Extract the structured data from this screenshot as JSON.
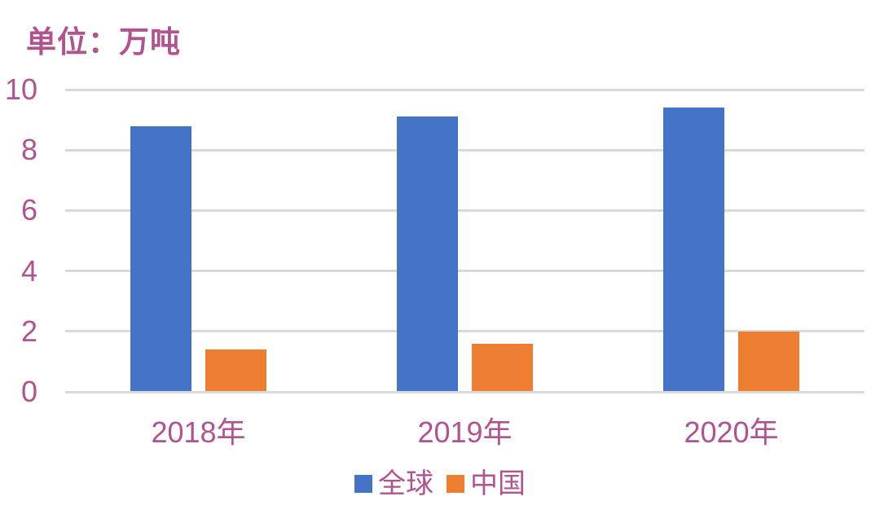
{
  "chart_data": {
    "type": "bar",
    "title": "单位：万吨",
    "categories": [
      "2018年",
      "2019年",
      "2020年"
    ],
    "series": [
      {
        "key": "global",
        "name": "全球",
        "color": "#4472C4",
        "values": [
          8.8,
          9.1,
          9.4
        ]
      },
      {
        "key": "china",
        "name": "中国",
        "color": "#ED7D31",
        "values": [
          1.4,
          1.6,
          2.0
        ]
      }
    ],
    "ylim": [
      0,
      10
    ],
    "yticks": [
      0,
      2,
      4,
      6,
      8,
      10
    ],
    "xlabel": "",
    "ylabel": "",
    "grid": true,
    "legend_position": "bottom"
  },
  "colors": {
    "text": "#B0538F",
    "gridline": "#D9D9D9",
    "background": "#FFFFFF",
    "bar_global": "#4472C4",
    "bar_china": "#ED7D31"
  }
}
